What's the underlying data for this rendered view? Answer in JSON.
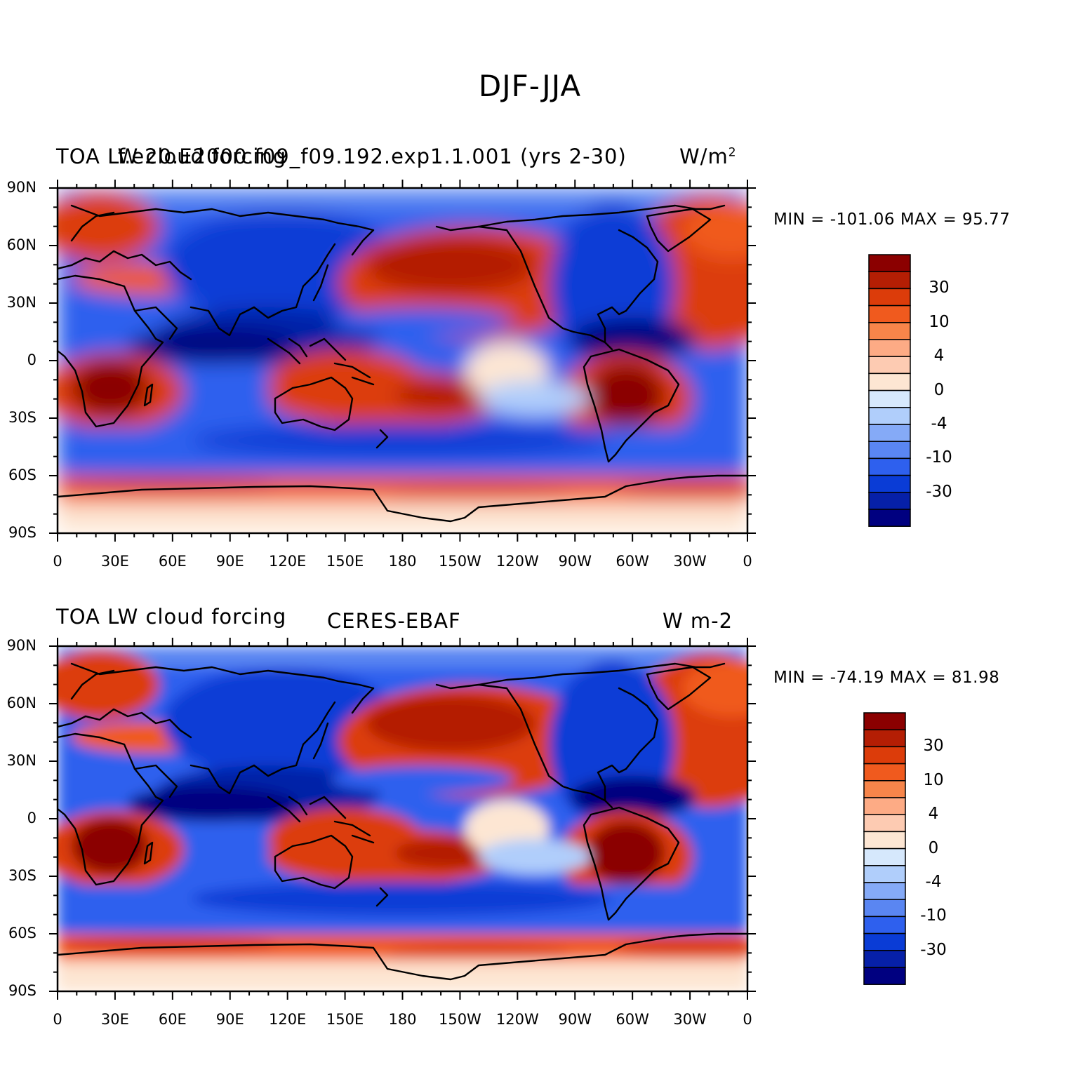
{
  "figure_title": "DJF-JJA",
  "panels": [
    {
      "left_label": "TOA LW cloud forcing",
      "center_label": "f.e20.E2000.f09_f09.192.exp1.1.001 (yrs 2-30)",
      "right_label": "W/m",
      "right_label_sup": "2",
      "min_max": "MIN = -101.06  MAX =  95.77"
    },
    {
      "left_label": "TOA LW cloud forcing",
      "center_label": "CERES-EBAF",
      "right_label": "W m-2",
      "right_label_sup": "",
      "min_max": "MIN = -74.19  MAX =  81.98"
    }
  ],
  "lat_ticks": [
    "90N",
    "60N",
    "30N",
    "0",
    "30S",
    "60S",
    "90S"
  ],
  "lon_ticks": [
    "0",
    "30E",
    "60E",
    "90E",
    "120E",
    "150E",
    "180",
    "150W",
    "120W",
    "90W",
    "60W",
    "30W",
    "0"
  ],
  "colorbar": {
    "colors": [
      "#8b0000",
      "#b41e04",
      "#dc3c0a",
      "#f05a1e",
      "#f7854a",
      "#fdab85",
      "#fdcbb2",
      "#fde6d3",
      "#d6e8fc",
      "#b0cefb",
      "#85aaf7",
      "#5a86f2",
      "#2e60ee",
      "#0a3cd6",
      "#0620a8",
      "#000080"
    ],
    "labels": [
      "30",
      "10",
      "4",
      "0",
      "-4",
      "-10",
      "-30"
    ]
  }
}
